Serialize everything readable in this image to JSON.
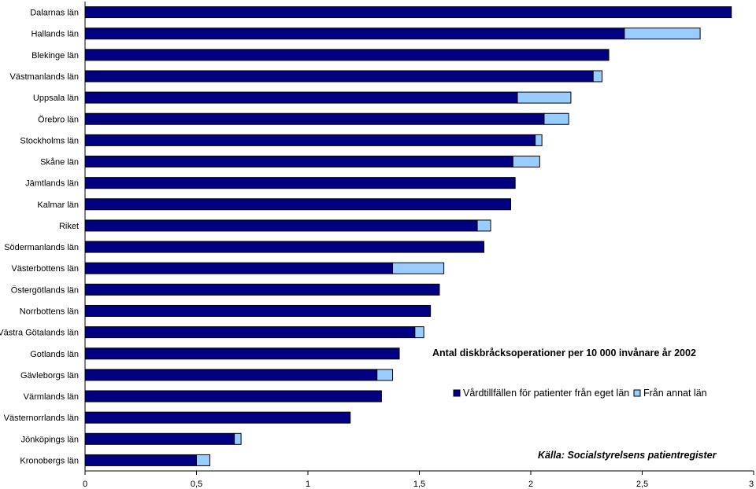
{
  "chart_data": {
    "type": "bar",
    "orientation": "horizontal",
    "stacked": true,
    "categories": [
      "Dalarnas län",
      "Hallands län",
      "Blekinge län",
      "Västmanlands län",
      "Uppsala län",
      "Örebro län",
      "Stockholms län",
      "Skåne län",
      "Jämtlands län",
      "Kalmar län",
      "Riket",
      "Södermanlands län",
      "Västerbottens län",
      "Östergötlands län",
      "Norrbottens län",
      "Västra Götalands län",
      "Gotlands län",
      "Gävleborgs län",
      "Värmlands län",
      "Västernorrlands län",
      "Jönköpings län",
      "Kronobergs län"
    ],
    "series": [
      {
        "name": "Vårdtillfällen för patienter från eget län",
        "color": "#000080",
        "values": [
          2.9,
          2.42,
          2.35,
          2.28,
          1.94,
          2.06,
          2.02,
          1.92,
          1.93,
          1.91,
          1.76,
          1.79,
          1.38,
          1.59,
          1.55,
          1.48,
          1.41,
          1.31,
          1.33,
          1.19,
          0.67,
          0.5
        ]
      },
      {
        "name": "Från annat län",
        "color": "#99CCFF",
        "values": [
          0,
          0.34,
          0,
          0.04,
          0.24,
          0.11,
          0.03,
          0.12,
          0,
          0,
          0.06,
          0,
          0.23,
          0,
          0,
          0.04,
          0,
          0.07,
          0,
          0,
          0.03,
          0.06
        ]
      }
    ],
    "xlim": [
      0,
      3
    ],
    "xticks": [
      0,
      0.5,
      1,
      1.5,
      2,
      2.5,
      3
    ],
    "xtick_labels": [
      "0",
      "0,5",
      "1",
      "1,5",
      "2",
      "2,5",
      "3"
    ],
    "grid": false,
    "legend_placement": "right",
    "title": "Antal diskbråcksoperationer per 10 000 invånare år 2002",
    "note": "Källa: Socialstyrelsens patientregister"
  }
}
